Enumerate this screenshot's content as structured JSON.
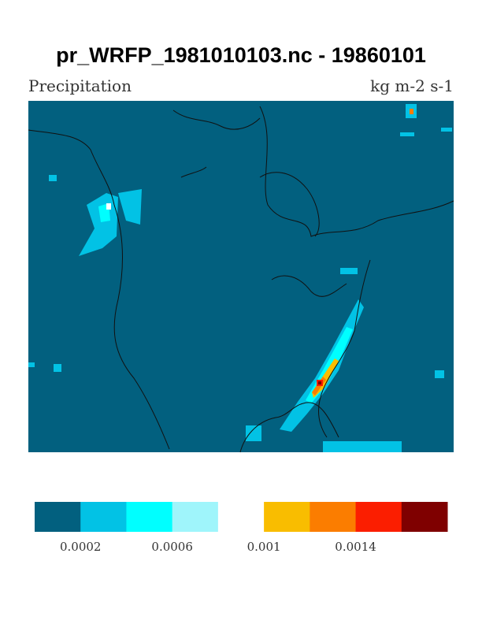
{
  "title": "pr_WRFP_1981010103.nc - 19860101",
  "left_label": "Precipitation",
  "right_label": "kg m-2 s-1",
  "colorbar": {
    "colors": [
      "#02607f",
      "#02c2e5",
      "#00ffff",
      "#9ff5fb",
      "#ffffff",
      "#f9bd00",
      "#fb7d00",
      "#fb1e00",
      "#7f0000"
    ],
    "lim": [
      0,
      0.0018
    ],
    "ticks": [
      0.0002,
      0.0006,
      0.001,
      0.0014
    ]
  }
}
